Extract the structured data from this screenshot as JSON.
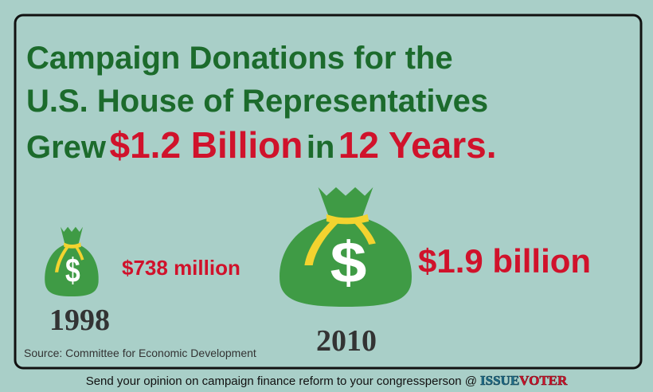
{
  "header": {
    "line1": "Campaign Donations for the",
    "line2": "U.S. House of Representatives",
    "line3": {
      "grew": "Grew",
      "amount": "$1.2 Billion",
      "in": "in",
      "years": "12 Years."
    }
  },
  "items": [
    {
      "amount": "$738 million",
      "year": "1998"
    },
    {
      "amount": "$1.9 billion",
      "year": "2010"
    }
  ],
  "source": "Source: Committee for Economic Development",
  "footer": {
    "text": "Send your opinion on campaign finance reform to your congressperson @",
    "logo_part1": "ISSUE",
    "logo_part2": "VOTER"
  }
}
